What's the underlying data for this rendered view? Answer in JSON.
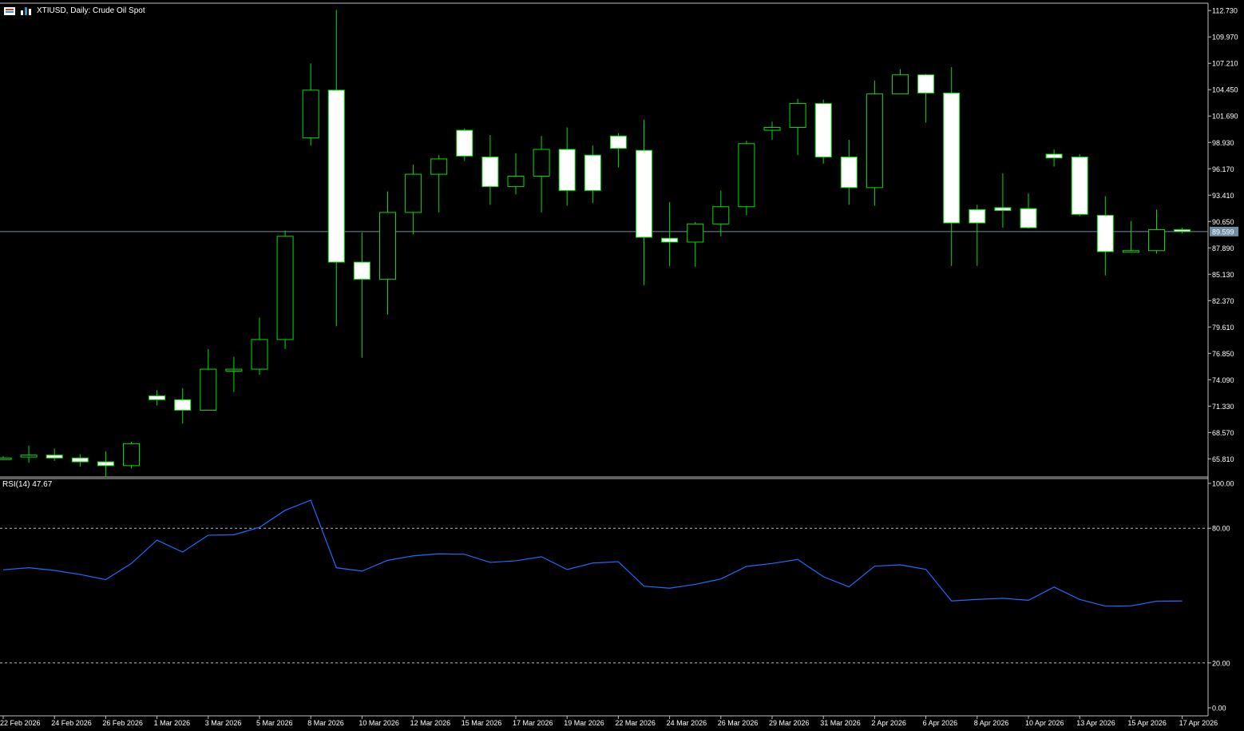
{
  "header": {
    "title": "XTIUSD, Daily:  Crude Oil Spot",
    "rsi_title": "RSI(14) 47.67"
  },
  "colors": {
    "background": "#000000",
    "candle_up": "#000000",
    "candle_down": "#ffffff",
    "wick": "#00e000",
    "rsi_line": "#1e6cff",
    "bid_line": "#6f8fa6",
    "frame": "#c0c0c0"
  },
  "icons": [
    "table-icon",
    "bar-chart-icon"
  ],
  "chart_data": [
    {
      "type": "candlestick",
      "title": "XTIUSD, Daily:  Crude Oil Spot",
      "ylim": [
        64.0,
        113.5
      ],
      "y_ticks": [
        "112.730",
        "109.970",
        "107.210",
        "104.450",
        "101.690",
        "98.930",
        "96.170",
        "93.410",
        "90.650",
        "87.890",
        "85.130",
        "82.370",
        "79.610",
        "76.850",
        "74.090",
        "71.330",
        "68.570",
        "65.810"
      ],
      "current_price": "89.599",
      "x_labels": [
        "22 Feb 2026",
        "24 Feb 2026",
        "26 Feb 2026",
        "1 Mar 2026",
        "3 Mar 2026",
        "5 Mar 2026",
        "8 Mar 2026",
        "10 Mar 2026",
        "12 Mar 2026",
        "15 Mar 2026",
        "17 Mar 2026",
        "19 Mar 2026",
        "22 Mar 2026",
        "24 Mar 2026",
        "26 Mar 2026",
        "29 Mar 2026",
        "31 Mar 2026",
        "2 Apr 2026",
        "6 Apr 2026",
        "8 Apr 2026",
        "10 Apr 2026",
        "13 Apr 2026",
        "15 Apr 2026",
        "17 Apr 2026"
      ],
      "candles": [
        {
          "o": 65.9,
          "h": 66.1,
          "l": 65.7,
          "c": 65.9
        },
        {
          "o": 66.0,
          "h": 67.2,
          "l": 65.4,
          "c": 66.2
        },
        {
          "o": 66.2,
          "h": 66.9,
          "l": 65.6,
          "c": 65.9
        },
        {
          "o": 65.9,
          "h": 66.3,
          "l": 65.0,
          "c": 65.5
        },
        {
          "o": 65.5,
          "h": 66.6,
          "l": 63.9,
          "c": 65.1
        },
        {
          "o": 65.1,
          "h": 67.6,
          "l": 64.8,
          "c": 67.4
        },
        {
          "o": 72.4,
          "h": 73.0,
          "l": 71.4,
          "c": 72.0
        },
        {
          "o": 72.0,
          "h": 73.2,
          "l": 69.5,
          "c": 70.9
        },
        {
          "o": 70.9,
          "h": 77.3,
          "l": 70.9,
          "c": 75.2
        },
        {
          "o": 75.0,
          "h": 76.5,
          "l": 72.8,
          "c": 75.2
        },
        {
          "o": 75.2,
          "h": 80.6,
          "l": 74.6,
          "c": 78.3
        },
        {
          "o": 78.3,
          "h": 89.7,
          "l": 77.3,
          "c": 89.1
        },
        {
          "o": 99.4,
          "h": 107.2,
          "l": 98.6,
          "c": 104.4
        },
        {
          "o": 104.4,
          "h": 112.8,
          "l": 79.7,
          "c": 86.4
        },
        {
          "o": 86.4,
          "h": 89.5,
          "l": 76.4,
          "c": 84.6
        },
        {
          "o": 84.6,
          "h": 93.8,
          "l": 80.9,
          "c": 91.6
        },
        {
          "o": 91.6,
          "h": 96.6,
          "l": 89.3,
          "c": 95.6
        },
        {
          "o": 95.6,
          "h": 97.6,
          "l": 91.6,
          "c": 97.2
        },
        {
          "o": 100.2,
          "h": 100.4,
          "l": 97.0,
          "c": 97.5
        },
        {
          "o": 97.4,
          "h": 99.7,
          "l": 92.4,
          "c": 94.3
        },
        {
          "o": 94.3,
          "h": 97.8,
          "l": 93.5,
          "c": 95.4
        },
        {
          "o": 95.4,
          "h": 99.6,
          "l": 91.6,
          "c": 98.2
        },
        {
          "o": 98.2,
          "h": 100.5,
          "l": 92.3,
          "c": 93.9
        },
        {
          "o": 97.6,
          "h": 98.6,
          "l": 92.6,
          "c": 93.9
        },
        {
          "o": 99.6,
          "h": 99.9,
          "l": 96.3,
          "c": 98.3
        },
        {
          "o": 98.1,
          "h": 101.3,
          "l": 84.0,
          "c": 89.0
        },
        {
          "o": 88.9,
          "h": 92.7,
          "l": 86.0,
          "c": 88.5
        },
        {
          "o": 88.5,
          "h": 90.6,
          "l": 85.9,
          "c": 90.4
        },
        {
          "o": 90.4,
          "h": 93.9,
          "l": 89.1,
          "c": 92.2
        },
        {
          "o": 92.2,
          "h": 99.1,
          "l": 91.3,
          "c": 98.8
        },
        {
          "o": 100.2,
          "h": 101.1,
          "l": 99.2,
          "c": 100.5
        },
        {
          "o": 100.5,
          "h": 103.5,
          "l": 97.6,
          "c": 103.0
        },
        {
          "o": 103.0,
          "h": 103.4,
          "l": 96.7,
          "c": 97.4
        },
        {
          "o": 97.4,
          "h": 99.2,
          "l": 92.4,
          "c": 94.2
        },
        {
          "o": 94.2,
          "h": 105.4,
          "l": 92.3,
          "c": 104.0
        },
        {
          "o": 104.0,
          "h": 106.6,
          "l": 104.0,
          "c": 106.0
        },
        {
          "o": 106.0,
          "h": 106.1,
          "l": 101.0,
          "c": 104.1
        },
        {
          "o": 104.1,
          "h": 106.8,
          "l": 86.0,
          "c": 90.5
        },
        {
          "o": 91.9,
          "h": 92.4,
          "l": 86.0,
          "c": 90.5
        },
        {
          "o": 92.1,
          "h": 95.7,
          "l": 90.0,
          "c": 91.8
        },
        {
          "o": 92.0,
          "h": 93.6,
          "l": 89.9,
          "c": 90.0
        },
        {
          "o": 97.7,
          "h": 98.2,
          "l": 96.4,
          "c": 97.3
        },
        {
          "o": 97.4,
          "h": 97.7,
          "l": 91.2,
          "c": 91.4
        },
        {
          "o": 91.3,
          "h": 93.3,
          "l": 85.0,
          "c": 87.5
        },
        {
          "o": 87.5,
          "h": 90.7,
          "l": 87.4,
          "c": 87.6
        },
        {
          "o": 87.6,
          "h": 91.9,
          "l": 87.3,
          "c": 89.8
        },
        {
          "o": 89.8,
          "h": 90.0,
          "l": 89.4,
          "c": 89.6
        }
      ]
    },
    {
      "type": "line",
      "title": "RSI(14) 47.67",
      "ylim": [
        0,
        100
      ],
      "y_ticks": [
        "100.00",
        "80.00",
        "20.00",
        "0.00"
      ],
      "levels": [
        80,
        20
      ],
      "values": [
        61.5,
        62.4,
        61.2,
        59.4,
        57.1,
        64.3,
        74.7,
        69.4,
        76.9,
        77.1,
        80.4,
        88.0,
        92.5,
        62.4,
        60.9,
        65.7,
        67.7,
        68.6,
        68.4,
        64.8,
        65.5,
        67.3,
        61.6,
        64.5,
        65.1,
        54.2,
        53.3,
        55.0,
        57.4,
        63.0,
        64.3,
        66.1,
        58.4,
        53.9,
        63.1,
        63.7,
        61.7,
        47.6,
        48.3,
        48.8,
        47.9,
        53.8,
        48.3,
        45.3,
        45.4,
        47.5,
        47.6
      ]
    }
  ]
}
